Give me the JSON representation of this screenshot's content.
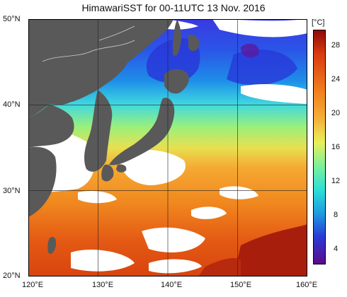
{
  "title": "HimawariSST for 00-11UTC 13 Nov. 2016",
  "map": {
    "lat_labels": [
      "50°N",
      "40°N",
      "30°N",
      "20°N"
    ],
    "lon_labels": [
      "120°E",
      "130°E",
      "140°E",
      "150°E",
      "160°E"
    ],
    "lat_range": [
      20,
      50
    ],
    "lon_range": [
      120,
      160
    ],
    "grid": true,
    "colors": {
      "land": "#595959",
      "no_data": "#ffffff",
      "coast_line": "#cfcfcf",
      "grid_line": "#222222"
    }
  },
  "colorbar": {
    "unit": "[°C]",
    "ticks": [
      "28",
      "24",
      "20",
      "16",
      "12",
      "8",
      "4"
    ],
    "range": [
      2,
      30
    ],
    "colors": [
      "#5a0a8c",
      "#2a3cd6",
      "#1e9ee0",
      "#2ee0d6",
      "#7ef09a",
      "#e8f05a",
      "#f5b03a",
      "#f07a1e",
      "#d83a10",
      "#8c0a0a"
    ]
  }
}
